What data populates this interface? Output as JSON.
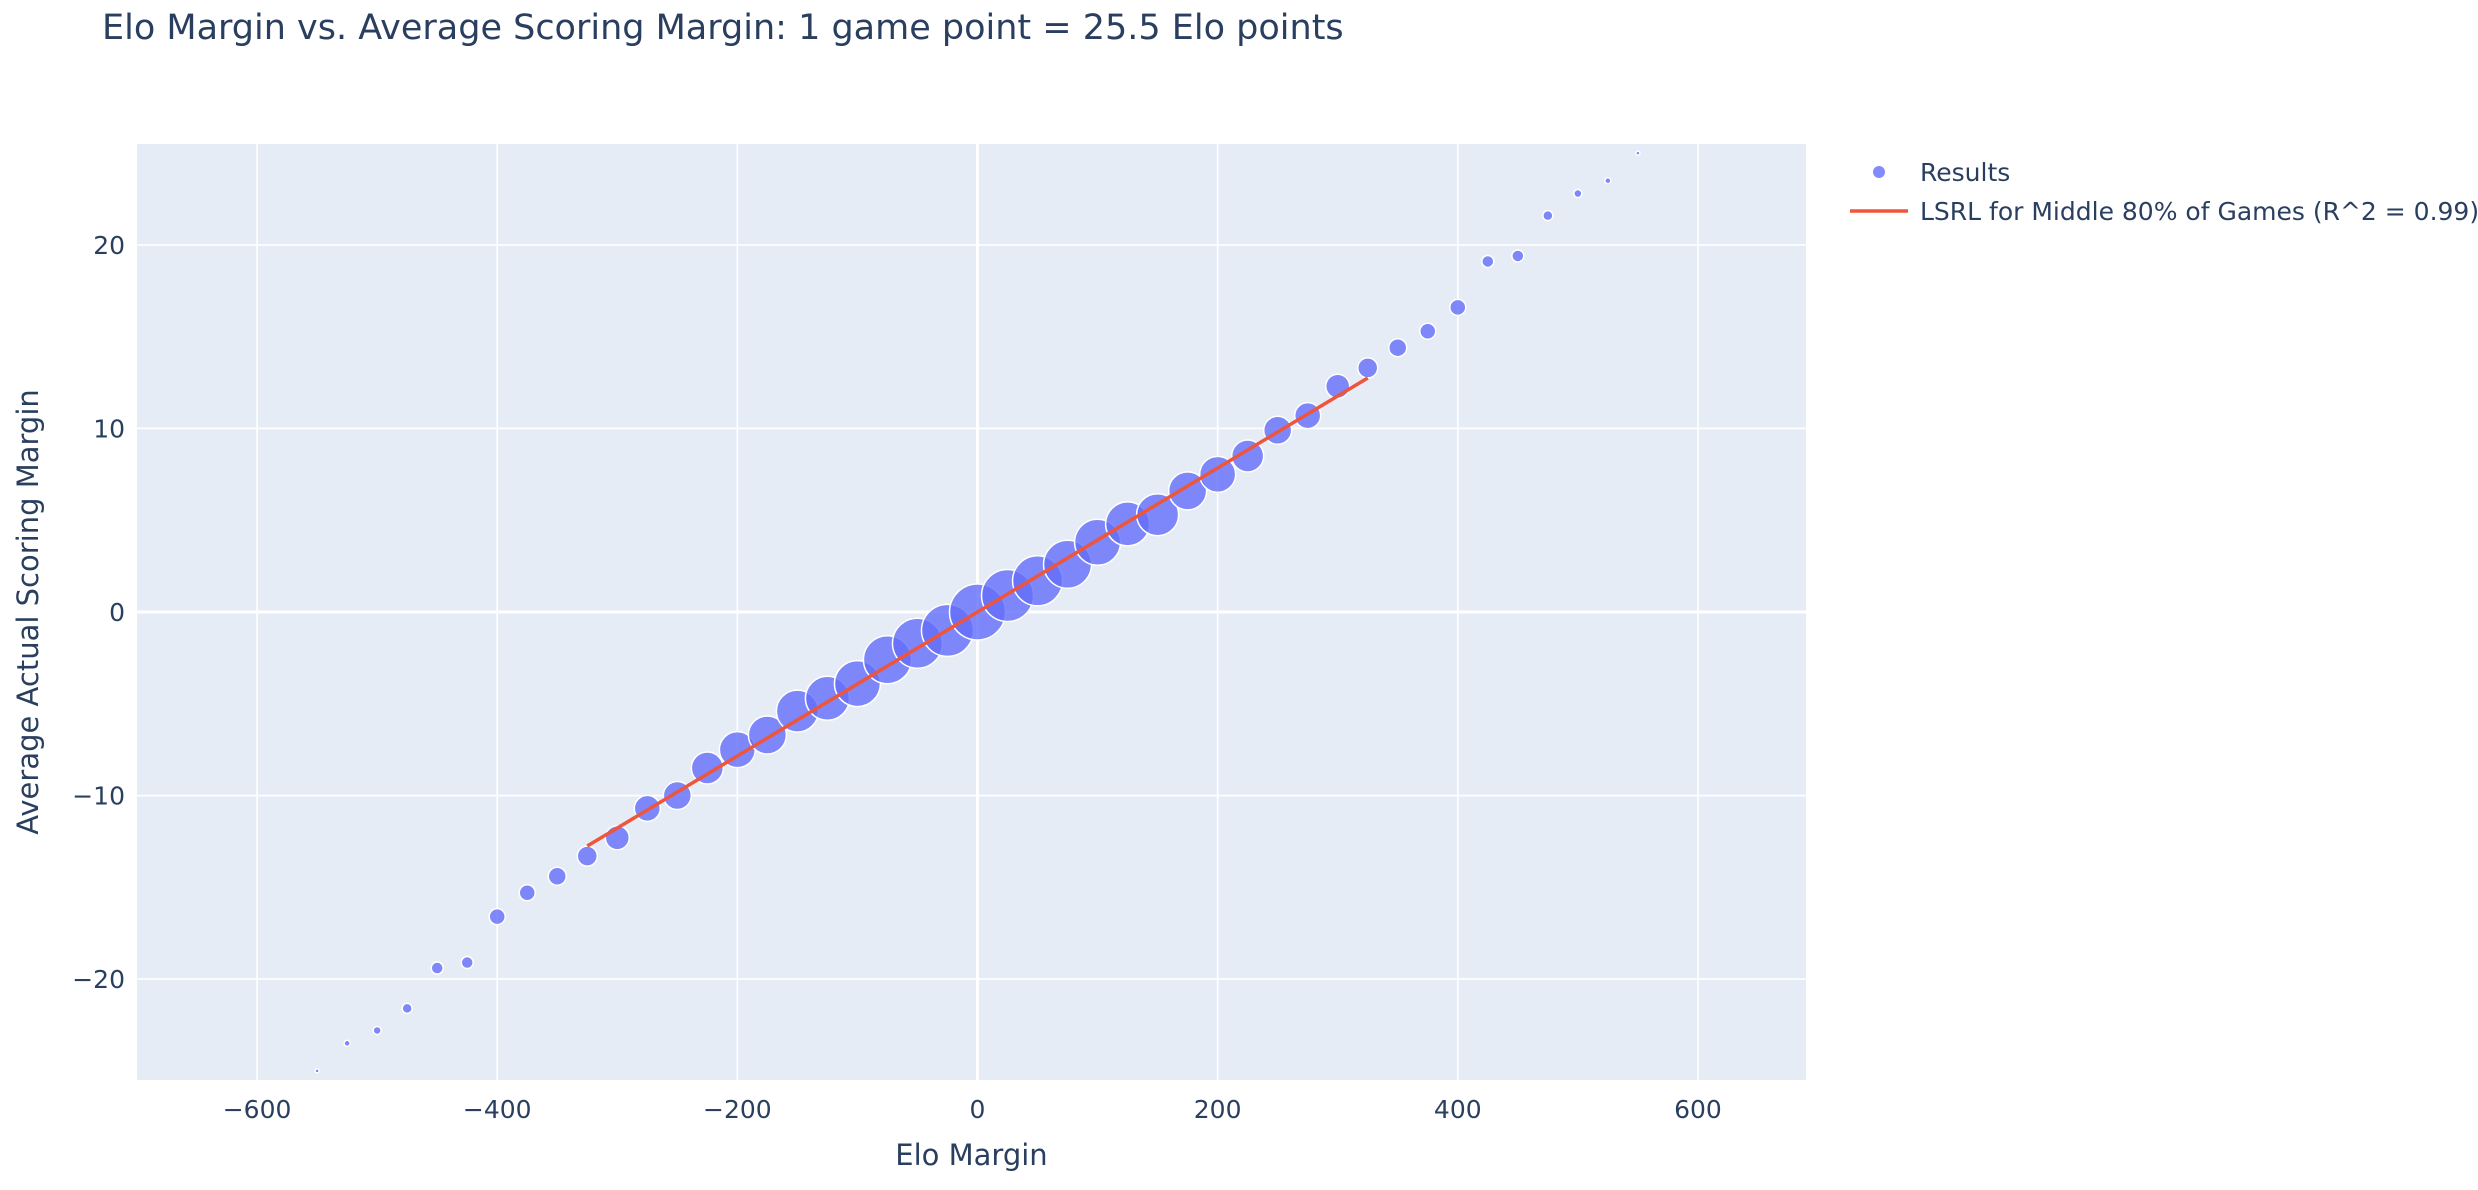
{
  "chart_data": {
    "type": "scatter",
    "title": "Elo Margin vs. Average Scoring Margin: 1 game point = 25.5 Elo points",
    "xlabel": "Elo Margin",
    "ylabel": "Average Actual Scoring Margin",
    "xlim": [
      -700,
      690
    ],
    "ylim": [
      -25.5,
      25.5
    ],
    "x_ticks": [
      -600,
      -400,
      -200,
      0,
      200,
      400,
      600
    ],
    "y_ticks": [
      -20,
      -10,
      0,
      10,
      20
    ],
    "x_tick_labels": [
      "−600",
      "−400",
      "−200",
      "0",
      "200",
      "400",
      "600"
    ],
    "y_tick_labels": [
      "−20",
      "−10",
      "0",
      "10",
      "20"
    ],
    "grid": true,
    "legend_position": "top-right, outside plot",
    "series": [
      {
        "name": "Results",
        "type": "scatter",
        "color": "#636efa",
        "x": [
          -550,
          -525,
          -500,
          -475,
          -450,
          -425,
          -400,
          -375,
          -350,
          -325,
          -300,
          -275,
          -250,
          -225,
          -200,
          -175,
          -150,
          -125,
          -100,
          -75,
          -50,
          -25,
          0,
          25,
          50,
          75,
          100,
          125,
          150,
          175,
          200,
          225,
          250,
          275,
          300,
          325,
          350,
          375,
          400,
          425,
          450,
          475,
          500,
          525,
          550
        ],
        "y": [
          -25.0,
          -23.5,
          -22.8,
          -21.6,
          -19.4,
          -19.1,
          -16.6,
          -15.3,
          -14.4,
          -13.3,
          -12.3,
          -10.7,
          -10.0,
          -8.5,
          -7.5,
          -6.7,
          -5.4,
          -4.7,
          -3.9,
          -2.6,
          -1.7,
          -1.0,
          0.0,
          0.9,
          1.7,
          2.6,
          3.8,
          4.8,
          5.3,
          6.6,
          7.5,
          8.5,
          9.9,
          10.7,
          12.3,
          13.3,
          14.4,
          15.3,
          16.6,
          19.1,
          19.4,
          21.6,
          22.8,
          23.5,
          25.0
        ],
        "size": [
          2,
          3,
          4,
          5,
          6,
          6,
          8,
          8,
          9,
          10,
          12,
          13,
          14,
          16,
          18,
          19,
          21,
          22,
          23,
          24,
          25,
          26,
          28,
          26,
          25,
          24,
          23,
          22,
          21,
          19,
          18,
          16,
          14,
          13,
          12,
          10,
          9,
          8,
          8,
          6,
          6,
          5,
          4,
          3,
          2
        ]
      },
      {
        "name": "LSRL for Middle 80% of Games (R^2 = 0.99)",
        "type": "line",
        "color": "#ef553b",
        "x": [
          -325,
          325
        ],
        "y": [
          -12.75,
          12.75
        ]
      }
    ]
  },
  "colors": {
    "plot_background": "#e5ecf6",
    "grid": "#ffffff",
    "text": "#2a3f5f",
    "results_marker": "#636efa",
    "lsrl_line": "#ef553b"
  }
}
